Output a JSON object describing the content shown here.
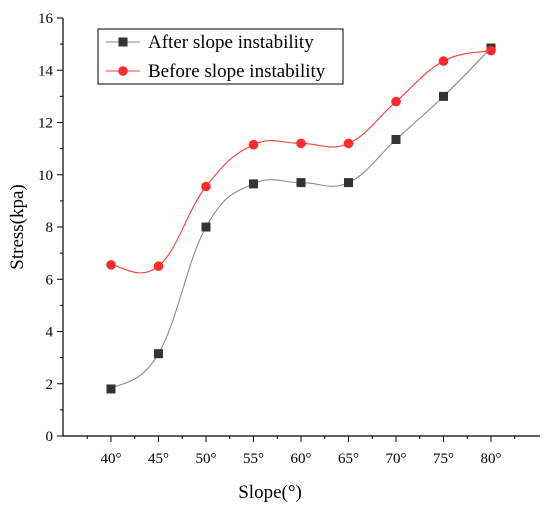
{
  "chart_data": {
    "type": "line",
    "xlabel": "Slope(°)",
    "ylabel": "Stress(kpa)",
    "categories": [
      "40°",
      "45°",
      "50°",
      "55°",
      "60°",
      "65°",
      "70°",
      "75°",
      "80°"
    ],
    "ylim": [
      0,
      16
    ],
    "yticks": [
      "0",
      "2",
      "4",
      "6",
      "8",
      "10",
      "12",
      "14",
      "16"
    ],
    "legend_position": "top-left",
    "series": [
      {
        "name": "After slope instability",
        "values": [
          1.8,
          3.15,
          8.0,
          9.65,
          9.7,
          9.7,
          11.35,
          13.0,
          14.85
        ],
        "color": "#333333",
        "line_color": "#8a8a8a",
        "marker": "square"
      },
      {
        "name": "Before slope instability",
        "values": [
          6.55,
          6.5,
          9.55,
          11.15,
          11.2,
          11.2,
          12.8,
          14.35,
          14.75
        ],
        "color": "#ff2a2a",
        "line_color": "#ff3b3b",
        "marker": "circle"
      }
    ]
  }
}
